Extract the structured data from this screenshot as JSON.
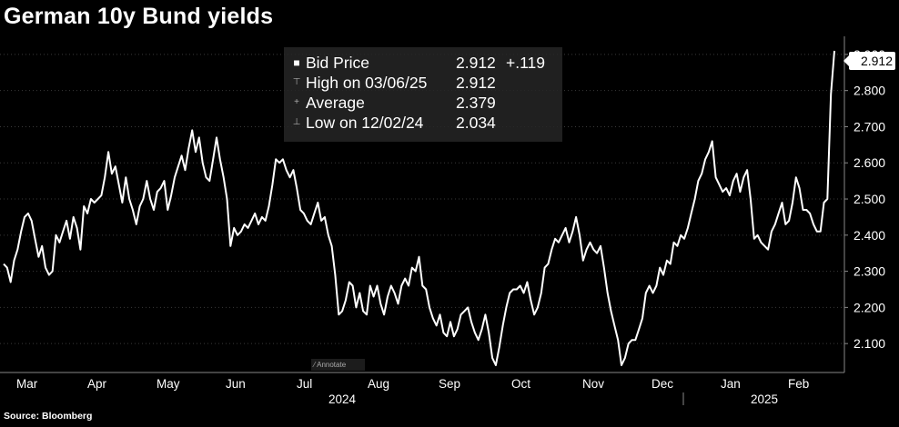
{
  "header": {
    "title": "German 10y Bund yields"
  },
  "footer": {
    "source": "Source: Bloomberg"
  },
  "legend": {
    "rows": [
      {
        "icon": "square-marker-icon",
        "label": "Bid Price",
        "value": "2.912",
        "change": "+.119"
      },
      {
        "icon": "high-marker-icon",
        "label": "High on 03/06/25",
        "value": "2.912",
        "change": ""
      },
      {
        "icon": "average-marker-icon",
        "label": "Average",
        "value": "2.379",
        "change": ""
      },
      {
        "icon": "low-marker-icon",
        "label": "Low on 12/02/24",
        "value": "2.034",
        "change": ""
      }
    ]
  },
  "annotate_label": "Annotate",
  "last_value_label": "2.912",
  "colors": {
    "background": "#000000",
    "line": "#ffffff",
    "grid": "#3a3a3a"
  },
  "chart_data": {
    "type": "line",
    "title": "German 10y Bund yields",
    "ylim": [
      2.02,
      2.95
    ],
    "y_ticks": [
      "2.100",
      "2.200",
      "2.300",
      "2.400",
      "2.500",
      "2.600",
      "2.700",
      "2.800",
      "2.900"
    ],
    "x_ticks": [
      "Mar",
      "Apr",
      "May",
      "Jun",
      "Jul",
      "Aug",
      "Sep",
      "Oct",
      "Nov",
      "Dec",
      "Jan",
      "Feb"
    ],
    "year_labels": [
      "2024",
      "2025"
    ],
    "grid": true,
    "series": [
      {
        "values": [
          2.32,
          2.31,
          2.27,
          2.33,
          2.36,
          2.41,
          2.45,
          2.46,
          2.44,
          2.39,
          2.34,
          2.37,
          2.31,
          2.29,
          2.3,
          2.4,
          2.38,
          2.41,
          2.44,
          2.39,
          2.45,
          2.42,
          2.36,
          2.48,
          2.46,
          2.5,
          2.49,
          2.5,
          2.51,
          2.56,
          2.63,
          2.57,
          2.59,
          2.54,
          2.49,
          2.56,
          2.5,
          2.47,
          2.43,
          2.48,
          2.5,
          2.55,
          2.5,
          2.47,
          2.52,
          2.53,
          2.55,
          2.47,
          2.51,
          2.56,
          2.59,
          2.62,
          2.58,
          2.64,
          2.69,
          2.63,
          2.67,
          2.6,
          2.56,
          2.55,
          2.61,
          2.67,
          2.61,
          2.56,
          2.5,
          2.37,
          2.42,
          2.4,
          2.41,
          2.43,
          2.42,
          2.44,
          2.46,
          2.43,
          2.45,
          2.44,
          2.48,
          2.54,
          2.61,
          2.6,
          2.61,
          2.58,
          2.56,
          2.58,
          2.53,
          2.47,
          2.46,
          2.44,
          2.43,
          2.46,
          2.49,
          2.44,
          2.45,
          2.4,
          2.37,
          2.29,
          2.18,
          2.19,
          2.22,
          2.27,
          2.26,
          2.2,
          2.24,
          2.19,
          2.18,
          2.26,
          2.23,
          2.26,
          2.21,
          2.18,
          2.23,
          2.26,
          2.24,
          2.21,
          2.26,
          2.28,
          2.26,
          2.31,
          2.3,
          2.34,
          2.26,
          2.25,
          2.2,
          2.17,
          2.15,
          2.18,
          2.13,
          2.12,
          2.16,
          2.12,
          2.14,
          2.18,
          2.19,
          2.2,
          2.16,
          2.13,
          2.11,
          2.14,
          2.18,
          2.13,
          2.06,
          2.04,
          2.09,
          2.15,
          2.2,
          2.24,
          2.25,
          2.25,
          2.26,
          2.24,
          2.27,
          2.22,
          2.18,
          2.2,
          2.24,
          2.31,
          2.32,
          2.36,
          2.39,
          2.38,
          2.4,
          2.42,
          2.38,
          2.41,
          2.45,
          2.4,
          2.33,
          2.36,
          2.38,
          2.36,
          2.35,
          2.37,
          2.31,
          2.24,
          2.19,
          2.15,
          2.11,
          2.04,
          2.06,
          2.1,
          2.11,
          2.11,
          2.14,
          2.17,
          2.24,
          2.26,
          2.24,
          2.26,
          2.31,
          2.29,
          2.33,
          2.32,
          2.38,
          2.37,
          2.4,
          2.39,
          2.42,
          2.46,
          2.5,
          2.55,
          2.57,
          2.61,
          2.63,
          2.66,
          2.56,
          2.54,
          2.52,
          2.53,
          2.51,
          2.55,
          2.57,
          2.52,
          2.56,
          2.58,
          2.5,
          2.39,
          2.4,
          2.38,
          2.37,
          2.36,
          2.41,
          2.43,
          2.46,
          2.49,
          2.43,
          2.44,
          2.49,
          2.56,
          2.53,
          2.47,
          2.47,
          2.46,
          2.43,
          2.41,
          2.41,
          2.49,
          2.5,
          2.79,
          2.91
        ]
      }
    ]
  }
}
